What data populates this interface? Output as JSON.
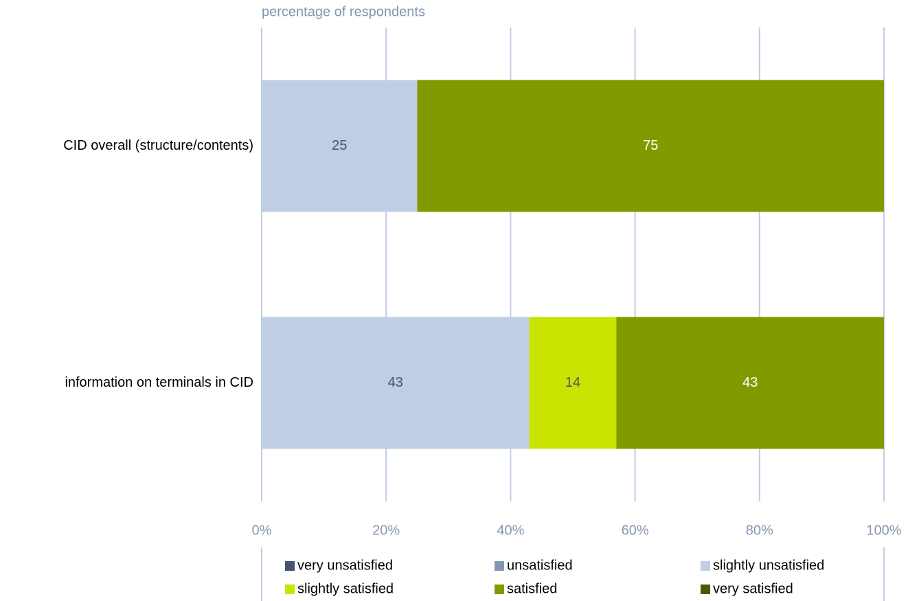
{
  "chart_data": {
    "type": "stacked_barh",
    "x_label": "percentage of respondents",
    "categories": [
      "CID overall (structure/contents)",
      "information on terminals in CID"
    ],
    "series": [
      {
        "name": "very unsatisfied",
        "color": "#44546a",
        "values": [
          0,
          0
        ]
      },
      {
        "name": "unsatisfied",
        "color": "#8496b0",
        "values": [
          0,
          0
        ]
      },
      {
        "name": "slightly unsatisfied",
        "color": "#c0cde4",
        "values": [
          25,
          43
        ]
      },
      {
        "name": "slightly satisfied",
        "color": "#c8e400",
        "values": [
          0,
          14
        ]
      },
      {
        "name": "satisfied",
        "color": "#809a00",
        "values": [
          75,
          43
        ]
      },
      {
        "name": "very satisfied",
        "color": "#4a5a00",
        "values": [
          0,
          0
        ]
      }
    ],
    "xlim": [
      0,
      100
    ],
    "xticks": [
      {
        "value": 0,
        "label": "0%"
      },
      {
        "value": 20,
        "label": "20%"
      },
      {
        "value": 40,
        "label": "40%"
      },
      {
        "value": 60,
        "label": "60%"
      },
      {
        "value": 80,
        "label": "80%"
      },
      {
        "value": 100,
        "label": "100%"
      }
    ],
    "grid": true,
    "legend": "bottom"
  }
}
